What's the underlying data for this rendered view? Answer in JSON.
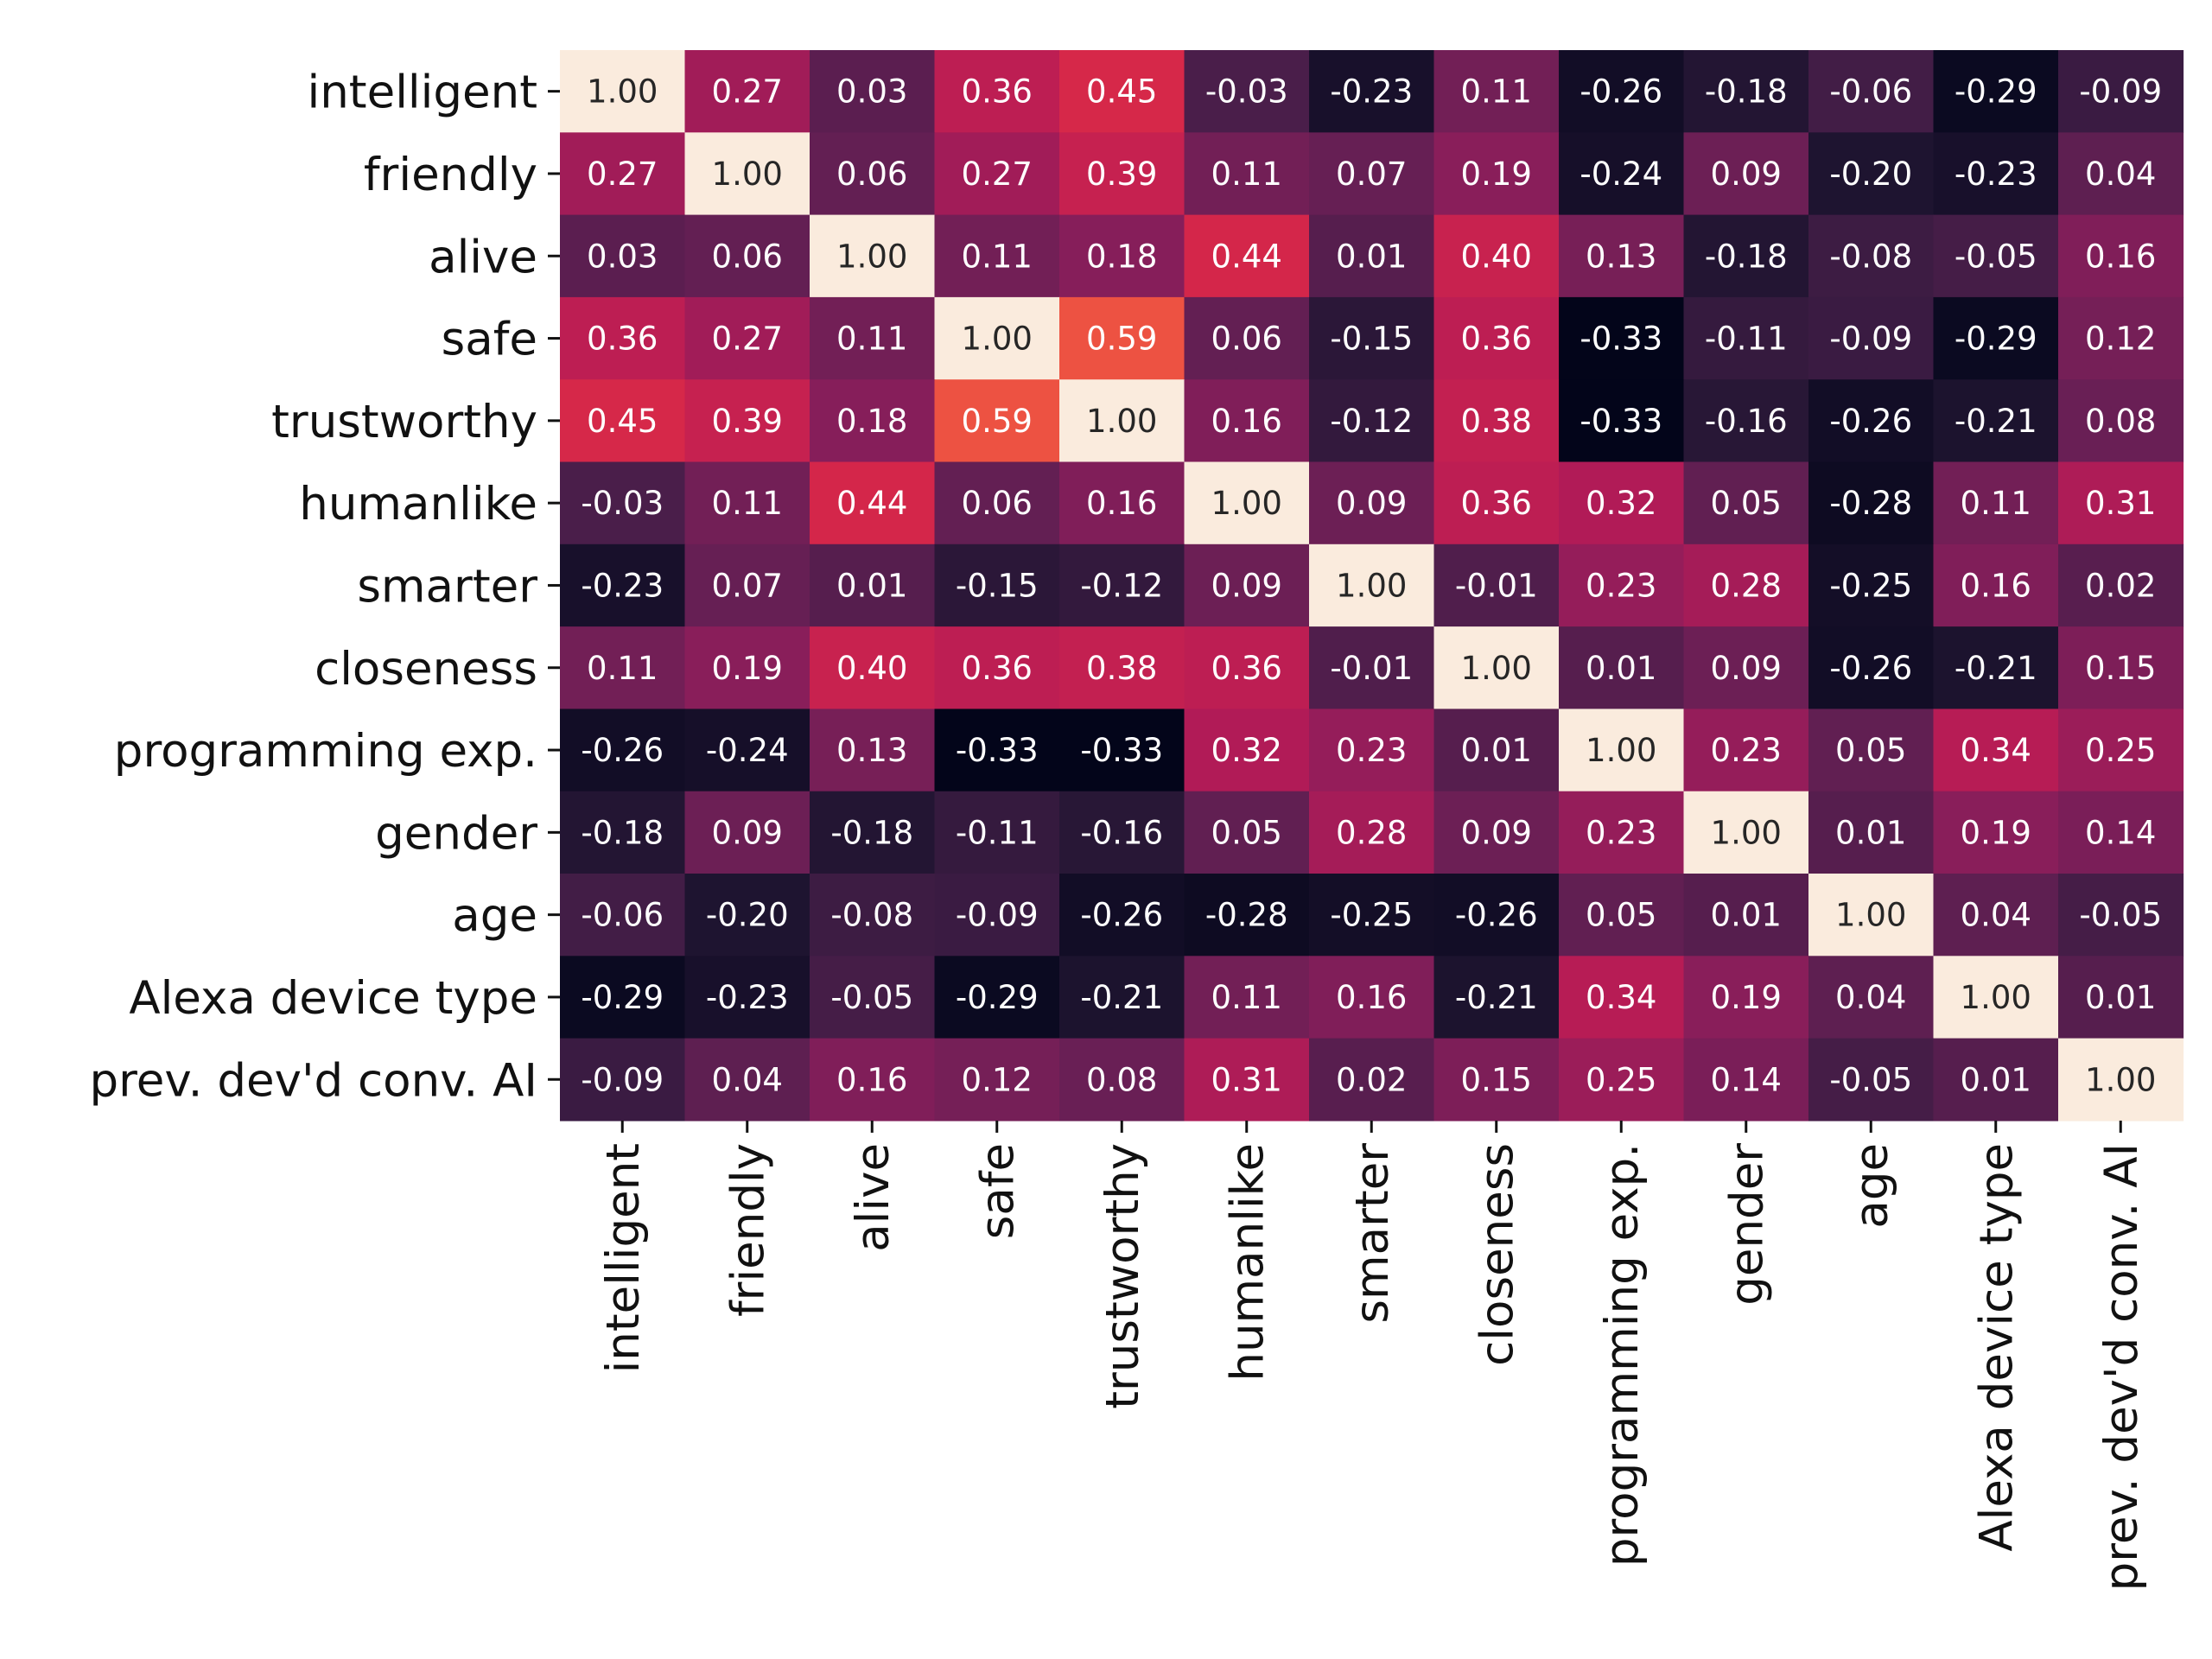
{
  "chart_data": {
    "type": "heatmap",
    "title": "",
    "xlabel": "",
    "ylabel": "",
    "labels": [
      "intelligent",
      "friendly",
      "alive",
      "safe",
      "trustworthy",
      "humanlike",
      "smarter",
      "closeness",
      "programming exp.",
      "gender",
      "age",
      "Alexa device type",
      "prev. dev'd conv. AI"
    ],
    "values": [
      [
        1.0,
        0.27,
        0.03,
        0.36,
        0.45,
        -0.03,
        -0.23,
        0.11,
        -0.26,
        -0.18,
        -0.06,
        -0.29,
        -0.09
      ],
      [
        0.27,
        1.0,
        0.06,
        0.27,
        0.39,
        0.11,
        0.07,
        0.19,
        -0.24,
        0.09,
        -0.2,
        -0.23,
        0.04
      ],
      [
        0.03,
        0.06,
        1.0,
        0.11,
        0.18,
        0.44,
        0.01,
        0.4,
        0.13,
        -0.18,
        -0.08,
        -0.05,
        0.16
      ],
      [
        0.36,
        0.27,
        0.11,
        1.0,
        0.59,
        0.06,
        -0.15,
        0.36,
        -0.33,
        -0.11,
        -0.09,
        -0.29,
        0.12
      ],
      [
        0.45,
        0.39,
        0.18,
        0.59,
        1.0,
        0.16,
        -0.12,
        0.38,
        -0.33,
        -0.16,
        -0.26,
        -0.21,
        0.08
      ],
      [
        -0.03,
        0.11,
        0.44,
        0.06,
        0.16,
        1.0,
        0.09,
        0.36,
        0.32,
        0.05,
        -0.28,
        0.11,
        0.31
      ],
      [
        -0.23,
        0.07,
        0.01,
        -0.15,
        -0.12,
        0.09,
        1.0,
        -0.01,
        0.23,
        0.28,
        -0.25,
        0.16,
        0.02
      ],
      [
        0.11,
        0.19,
        0.4,
        0.36,
        0.38,
        0.36,
        -0.01,
        1.0,
        0.01,
        0.09,
        -0.26,
        -0.21,
        0.15
      ],
      [
        -0.26,
        -0.24,
        0.13,
        -0.33,
        -0.33,
        0.32,
        0.23,
        0.01,
        1.0,
        0.23,
        0.05,
        0.34,
        0.25
      ],
      [
        -0.18,
        0.09,
        -0.18,
        -0.11,
        -0.16,
        0.05,
        0.28,
        0.09,
        0.23,
        1.0,
        0.01,
        0.19,
        0.14
      ],
      [
        -0.06,
        -0.2,
        -0.08,
        -0.09,
        -0.26,
        -0.28,
        -0.25,
        -0.26,
        0.05,
        0.01,
        1.0,
        0.04,
        -0.05
      ],
      [
        -0.29,
        -0.23,
        -0.05,
        -0.29,
        -0.21,
        0.11,
        0.16,
        -0.21,
        0.34,
        0.19,
        0.04,
        1.0,
        0.01
      ],
      [
        -0.09,
        0.04,
        0.16,
        0.12,
        0.08,
        0.31,
        0.02,
        0.15,
        0.25,
        0.14,
        -0.05,
        0.01,
        1.0
      ]
    ],
    "value_format": "0.00",
    "color_range": [
      -0.33,
      1.0
    ],
    "colormap": "rocket",
    "legend": "none",
    "grid": false
  }
}
